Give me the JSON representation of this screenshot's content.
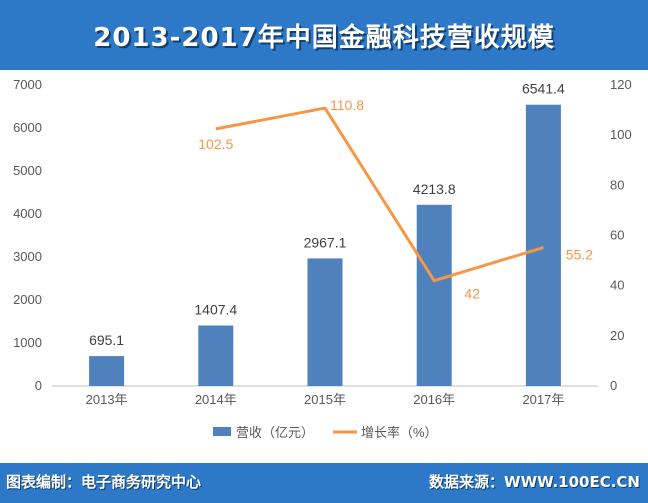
{
  "header": {
    "title": "2013-2017年中国金融科技营收规模"
  },
  "footer": {
    "left": "图表编制：电子商务研究中心",
    "right": "数据来源：WWW.100EC.CN"
  },
  "colors": {
    "bar": "#4f81bd",
    "line": "#f79646",
    "frame": "#2d79c7"
  },
  "chart_data": {
    "type": "bar",
    "categories": [
      "2013年",
      "2014年",
      "2015年",
      "2016年",
      "2017年"
    ],
    "series": [
      {
        "name": "营收（亿元）",
        "type": "bar",
        "axis": "left",
        "values": [
          695.1,
          1407.4,
          2967.1,
          4213.8,
          6541.4
        ],
        "labels": [
          "695.1",
          "1407.4",
          "2967.1",
          "4213.8",
          "6541.4"
        ]
      },
      {
        "name": "增长率（%）",
        "type": "line",
        "axis": "right",
        "values": [
          null,
          102.5,
          110.8,
          42,
          55.2
        ],
        "labels": [
          "",
          "102.5",
          "110.8",
          "42",
          "55.2"
        ]
      }
    ],
    "y_left": {
      "lim": [
        0,
        7000
      ],
      "ticks": [
        "0",
        "1000",
        "2000",
        "3000",
        "4000",
        "5000",
        "6000",
        "7000"
      ]
    },
    "y_right": {
      "lim": [
        0,
        120
      ],
      "ticks": [
        "0",
        "20",
        "40",
        "60",
        "80",
        "100",
        "120"
      ]
    },
    "grid": false,
    "legend": "bottom"
  }
}
